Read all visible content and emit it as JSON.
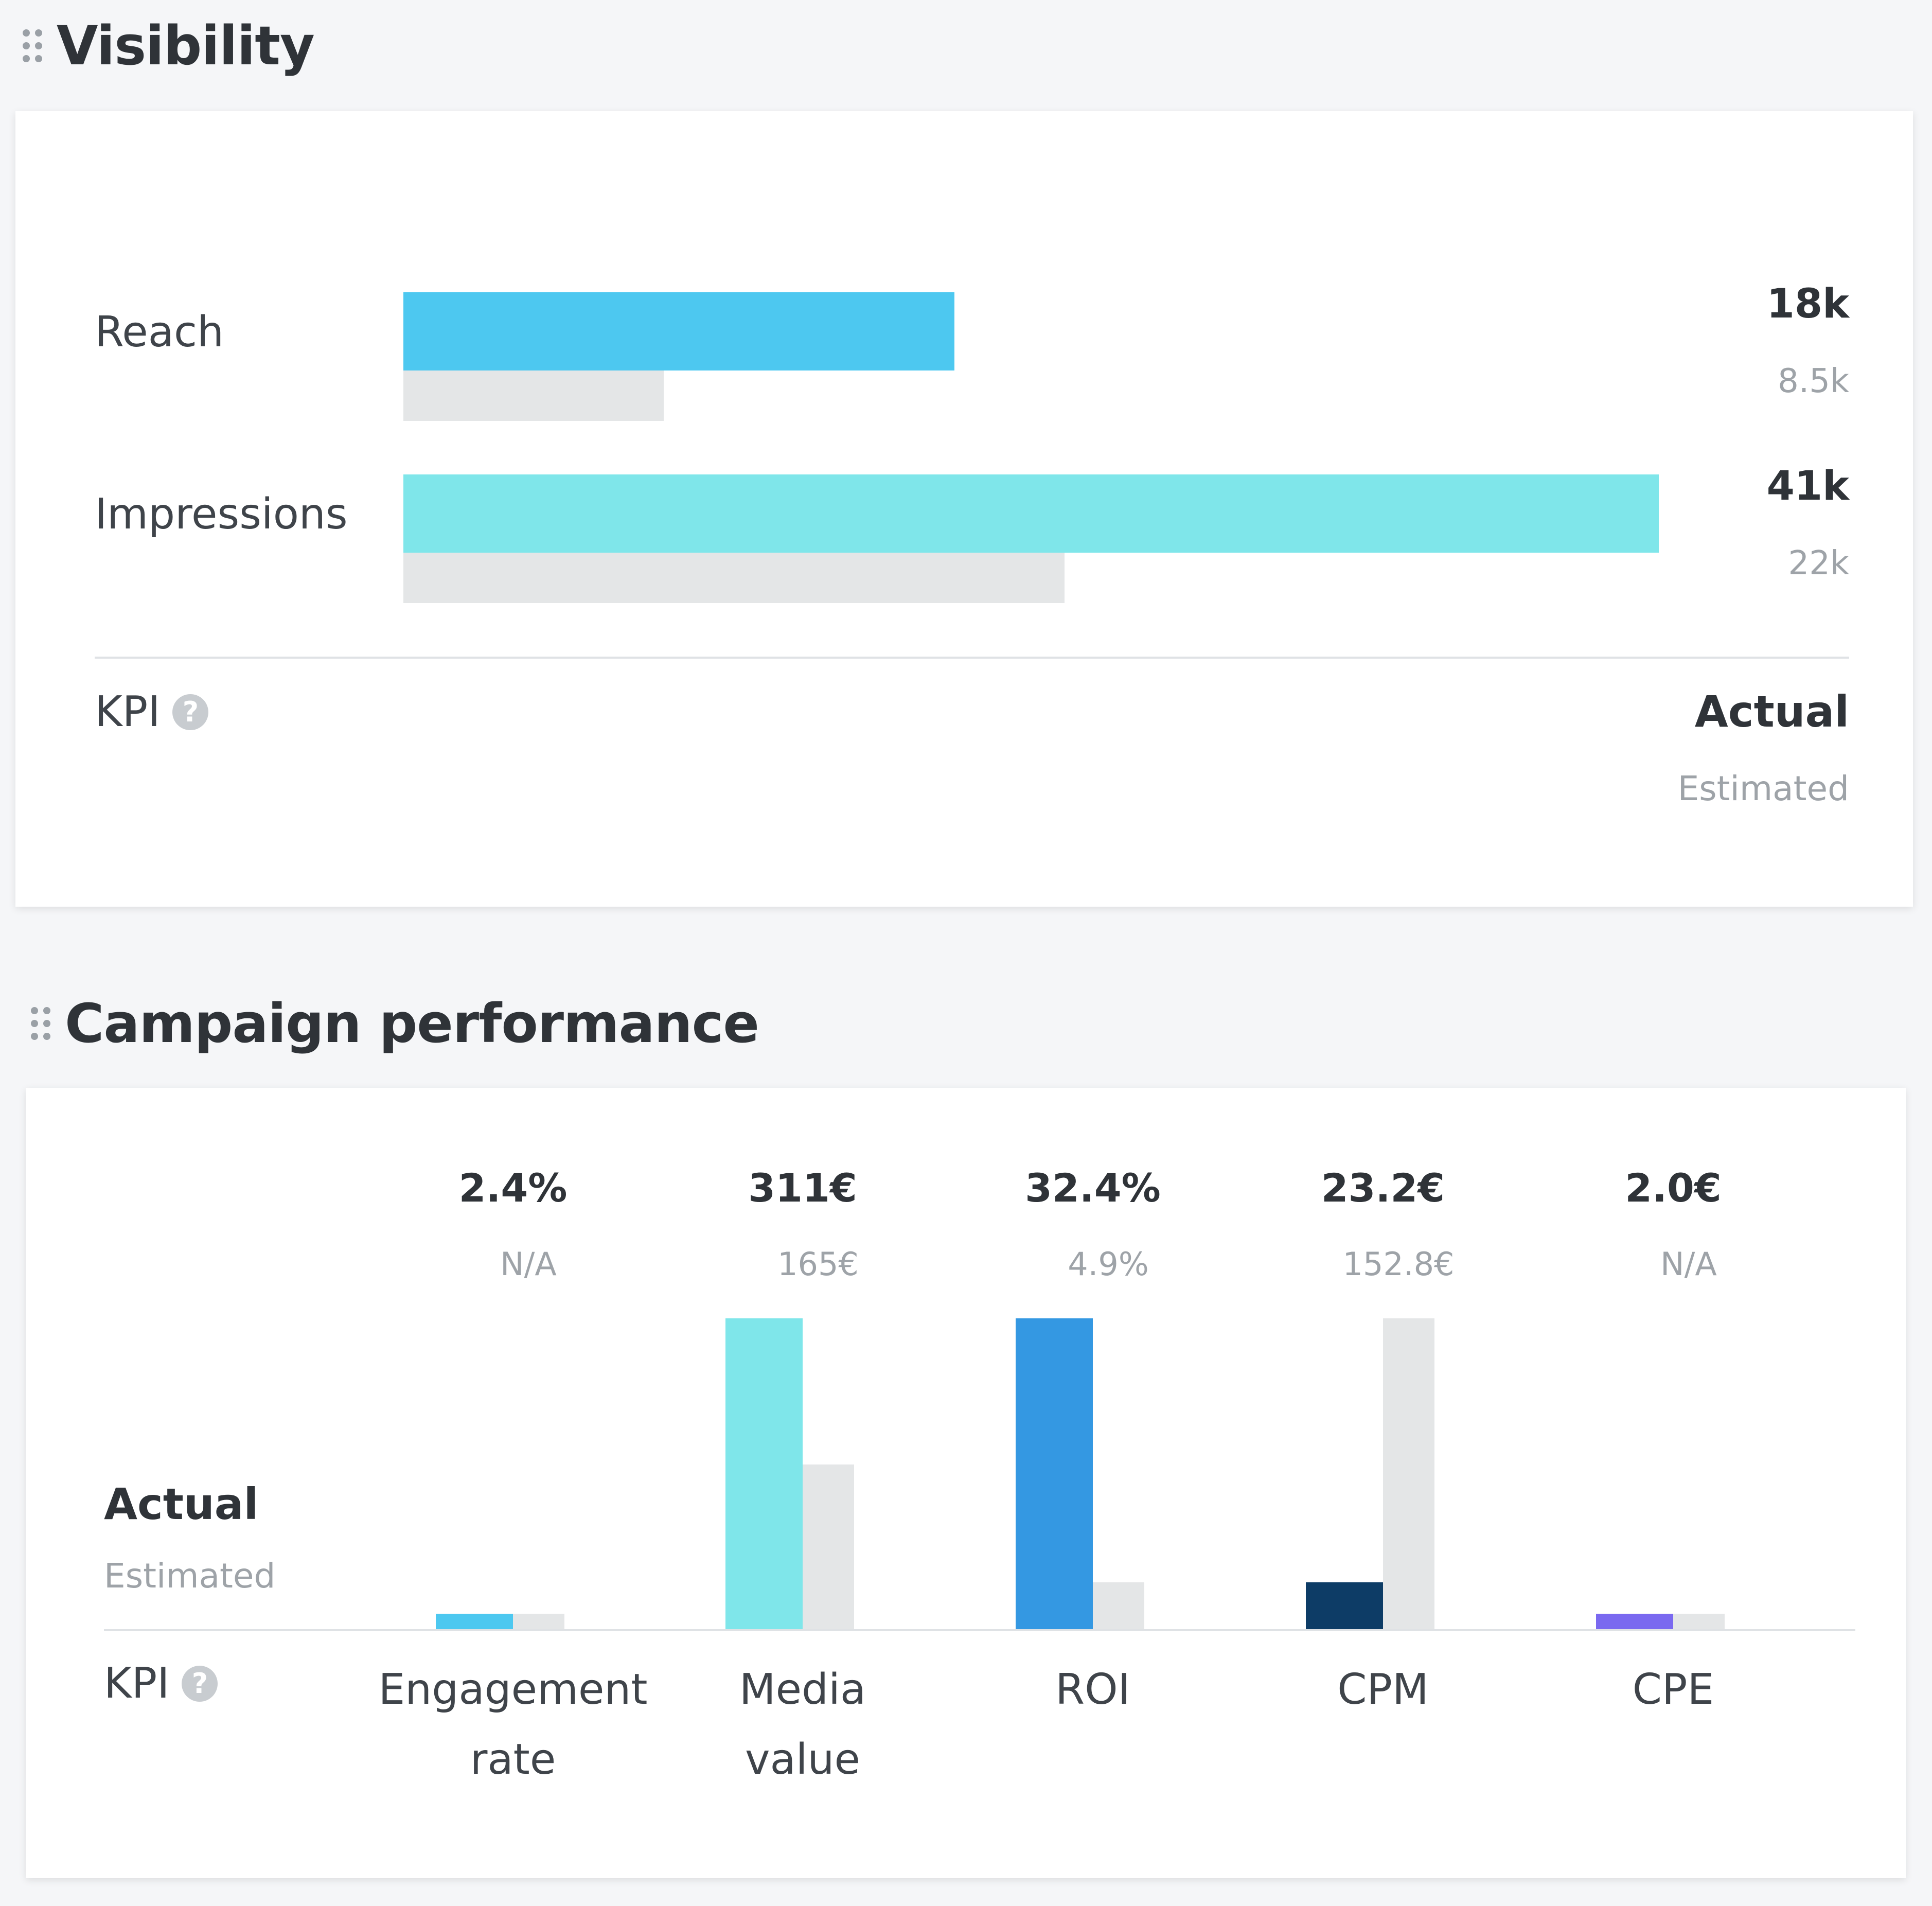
{
  "visibility": {
    "title": "Visibility",
    "rows": [
      {
        "label": "Reach",
        "actual_label": "18k",
        "estimated_label": "8.5k",
        "actual": 18000,
        "estimated": 8500,
        "color": "#4dc8f0"
      },
      {
        "label": "Impressions",
        "actual_label": "41k",
        "estimated_label": "22k",
        "actual": 41000,
        "estimated": 21600,
        "color": "#7fe6ea"
      }
    ],
    "kpi_label": "KPI",
    "legend_actual": "Actual",
    "legend_estimated": "Estimated"
  },
  "performance": {
    "title": "Campaign performance",
    "legend_actual": "Actual",
    "legend_estimated": "Estimated",
    "kpi_label": "KPI",
    "columns": [
      {
        "label_line1": "Engagement",
        "label_line2": "rate",
        "actual_label": "2.4%",
        "estimated_label": "N/A",
        "color": "#4dc8f0"
      },
      {
        "label_line1": "Media",
        "label_line2": "value",
        "actual_label": "311€",
        "estimated_label": "165€",
        "color": "#7fe6ea"
      },
      {
        "label_line1": "ROI",
        "label_line2": "",
        "actual_label": "32.4%",
        "estimated_label": "4.9%",
        "color": "#3498e2"
      },
      {
        "label_line1": "CPM",
        "label_line2": "",
        "actual_label": "23.2€",
        "estimated_label": "152.8€",
        "color": "#0d3c66"
      },
      {
        "label_line1": "CPE",
        "label_line2": "",
        "actual_label": "2.0€",
        "estimated_label": "N/A",
        "color": "#7a69f0"
      }
    ]
  },
  "chart_data": [
    {
      "type": "bar",
      "title": "Visibility",
      "categories": [
        "Reach",
        "Impressions"
      ],
      "series": [
        {
          "name": "Actual",
          "values": [
            18000,
            41000
          ]
        },
        {
          "name": "Estimated",
          "values": [
            8500,
            22000
          ]
        }
      ]
    },
    {
      "type": "bar",
      "title": "Campaign performance",
      "categories": [
        "Engagement rate",
        "Media value",
        "ROI",
        "CPM",
        "CPE"
      ],
      "series": [
        {
          "name": "Actual",
          "values": [
            2.4,
            311,
            32.4,
            23.2,
            2.0
          ]
        },
        {
          "name": "Estimated",
          "values": [
            null,
            165,
            4.9,
            152.8,
            null
          ]
        }
      ],
      "bar_fraction_of_max": {
        "actual": [
          0.05,
          1.0,
          1.0,
          0.15,
          0.05
        ],
        "estimated": [
          0.05,
          0.53,
          0.15,
          1.0,
          0.05
        ]
      }
    }
  ]
}
